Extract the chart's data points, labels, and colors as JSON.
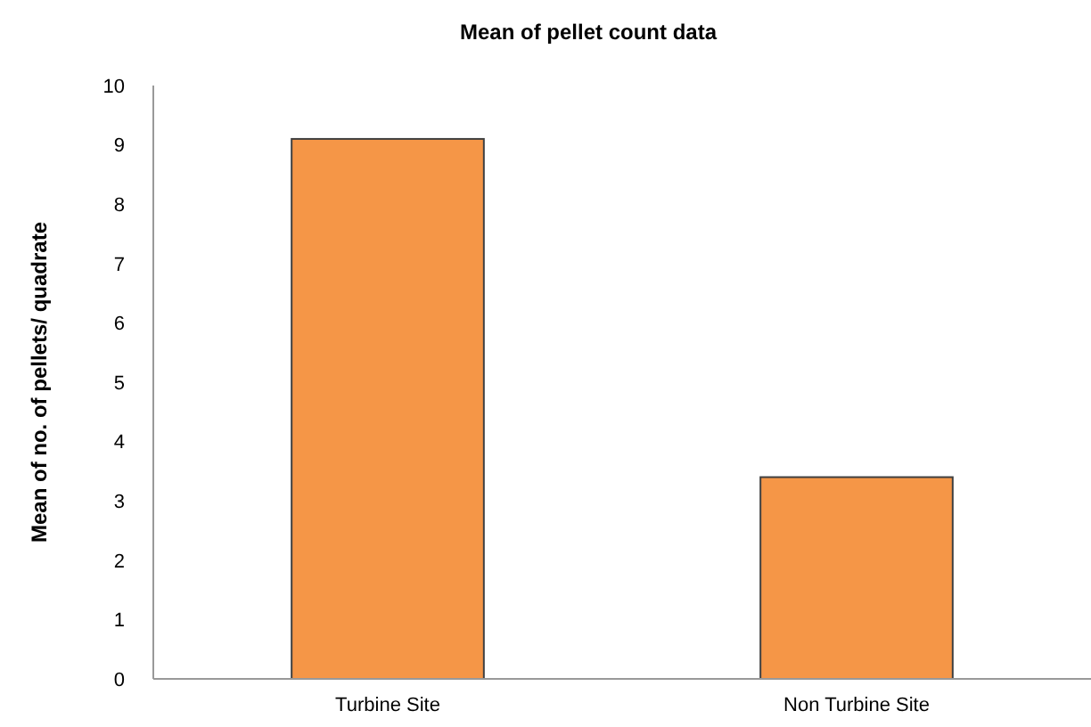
{
  "chart_data": {
    "type": "bar",
    "title": "Mean of pellet count data",
    "ylabel": "Mean of no. of pellets/ quadrate",
    "categories": [
      "Turbine Site",
      "Non Turbine Site"
    ],
    "values": [
      9.1,
      3.4
    ],
    "color": "#f59647",
    "ylim": [
      0,
      10
    ],
    "yticks": [
      0,
      1,
      2,
      3,
      4,
      5,
      6,
      7,
      8,
      9,
      10
    ]
  }
}
